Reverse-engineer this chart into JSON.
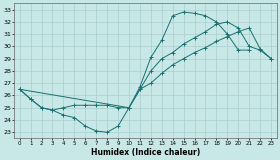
{
  "xlabel": "Humidex (Indice chaleur)",
  "xlim": [
    -0.5,
    23.5
  ],
  "ylim": [
    22.5,
    33.5
  ],
  "xticks": [
    0,
    1,
    2,
    3,
    4,
    5,
    6,
    7,
    8,
    9,
    10,
    11,
    12,
    13,
    14,
    15,
    16,
    17,
    18,
    19,
    20,
    21,
    22,
    23
  ],
  "yticks": [
    23,
    24,
    25,
    26,
    27,
    28,
    29,
    30,
    31,
    32,
    33
  ],
  "bg_color": "#c8e8e8",
  "grid_color": "#aacece",
  "line_color": "#1a7070",
  "s1x": [
    0,
    1,
    2,
    3,
    4,
    5,
    6,
    7,
    8,
    9,
    10,
    11,
    12,
    13,
    14,
    15,
    16,
    17,
    18,
    19,
    20,
    21
  ],
  "s1y": [
    26.5,
    25.7,
    25.0,
    24.8,
    24.4,
    24.2,
    23.5,
    23.1,
    23.0,
    23.5,
    25.0,
    26.7,
    29.1,
    30.5,
    32.5,
    32.8,
    32.7,
    32.5,
    32.0,
    31.0,
    29.7,
    29.7
  ],
  "s2x": [
    0,
    1,
    2,
    3,
    4,
    5,
    6,
    7,
    8,
    9,
    10,
    11,
    12,
    13,
    14,
    15,
    16,
    17,
    18,
    19,
    20,
    21,
    22,
    23
  ],
  "s2y": [
    26.5,
    25.7,
    25.0,
    24.8,
    25.0,
    25.2,
    25.2,
    25.2,
    25.2,
    25.0,
    25.0,
    26.5,
    28.0,
    29.0,
    29.5,
    30.2,
    30.7,
    31.2,
    31.8,
    32.0,
    31.5,
    30.0,
    29.7,
    29.0
  ],
  "s3x": [
    0,
    10,
    11,
    12,
    13,
    14,
    15,
    16,
    17,
    18,
    19,
    20,
    21,
    22,
    23
  ],
  "s3y": [
    26.5,
    25.0,
    26.5,
    27.0,
    27.8,
    28.5,
    29.0,
    29.5,
    29.9,
    30.4,
    30.8,
    31.2,
    31.5,
    29.8,
    29.0
  ]
}
